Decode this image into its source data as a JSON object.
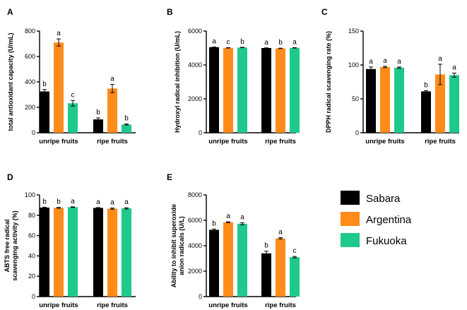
{
  "colors": {
    "Sabara": "#000000",
    "Argentina": "#ff8c1a",
    "Fukuoka": "#1fc98a"
  },
  "legend": {
    "entries": [
      "Sabara",
      "Argentina",
      "Fukuoka"
    ]
  },
  "chart_data": [
    {
      "panel": "A",
      "type": "bar",
      "categories": [
        "unripe fruits",
        "ripe fruits"
      ],
      "ylabel": "total antioxidant capacity (U/mL)",
      "ylim": [
        0,
        800
      ],
      "yticks": [
        0,
        200,
        400,
        600,
        800
      ],
      "series": [
        {
          "name": "Sabara",
          "values": [
            325,
            105
          ],
          "errors": [
            15,
            12
          ],
          "labels": [
            "b",
            "b"
          ]
        },
        {
          "name": "Argentina",
          "values": [
            710,
            348
          ],
          "errors": [
            28,
            32
          ],
          "labels": [
            "a",
            "a"
          ]
        },
        {
          "name": "Fukuoka",
          "values": [
            232,
            65
          ],
          "errors": [
            22,
            4
          ],
          "labels": [
            "c",
            "b"
          ]
        }
      ]
    },
    {
      "panel": "B",
      "type": "bar",
      "categories": [
        "unripe fruits",
        "ripe fruits"
      ],
      "ylabel": "Hydroxyl radical inhibition (U/mL)",
      "ylim": [
        0,
        6000
      ],
      "yticks": [
        0,
        2000,
        4000,
        6000
      ],
      "series": [
        {
          "name": "Sabara",
          "values": [
            5050,
            5000
          ],
          "errors": [
            10,
            10
          ],
          "labels": [
            "a",
            "a"
          ]
        },
        {
          "name": "Argentina",
          "values": [
            5010,
            4980
          ],
          "errors": [
            10,
            10
          ],
          "labels": [
            "c",
            "b"
          ]
        },
        {
          "name": "Fukuoka",
          "values": [
            5030,
            5010
          ],
          "errors": [
            10,
            10
          ],
          "labels": [
            "b",
            "a"
          ]
        }
      ]
    },
    {
      "panel": "C",
      "type": "bar",
      "categories": [
        "unripe fruits",
        "ripe fruits"
      ],
      "ylabel": "DPPH radical scavenging rate (%)",
      "ylim": [
        0,
        150
      ],
      "yticks": [
        0,
        50,
        100,
        150
      ],
      "series": [
        {
          "name": "Sabara",
          "values": [
            94,
            61
          ],
          "errors": [
            3,
            1
          ],
          "labels": [
            "a",
            "b"
          ]
        },
        {
          "name": "Argentina",
          "values": [
            97,
            86
          ],
          "errors": [
            1,
            15
          ],
          "labels": [
            "a",
            "a"
          ]
        },
        {
          "name": "Fukuoka",
          "values": [
            96,
            85
          ],
          "errors": [
            1,
            3
          ],
          "labels": [
            "a",
            "a"
          ]
        }
      ]
    },
    {
      "panel": "D",
      "type": "bar",
      "categories": [
        "unripe fruits",
        "ripe fruits"
      ],
      "ylabel": "ABTS free radical scavenging activity (%)",
      "ylabel_lines": [
        "ABTS free radical",
        "scavenging activity (%)"
      ],
      "ylim": [
        0,
        100
      ],
      "yticks": [
        0,
        20,
        40,
        60,
        80,
        100
      ],
      "series": [
        {
          "name": "Sabara",
          "values": [
            87.5,
            87.2
          ],
          "errors": [
            0.4,
            0.4
          ],
          "labels": [
            "b",
            "a"
          ]
        },
        {
          "name": "Argentina",
          "values": [
            87.3,
            86.5
          ],
          "errors": [
            0.4,
            0.6
          ],
          "labels": [
            "b",
            "a"
          ]
        },
        {
          "name": "Fukuoka",
          "values": [
            88.0,
            86.8
          ],
          "errors": [
            0.3,
            0.6
          ],
          "labels": [
            "a",
            "a"
          ]
        }
      ]
    },
    {
      "panel": "E",
      "type": "bar",
      "categories": [
        "unripe fruits",
        "ripe fruits"
      ],
      "ylabel": "Ability to inhibit superoxide anion radicals (U/L)",
      "ylabel_lines": [
        "Ability to inhibit superoxide",
        "anion radicals (U/L)"
      ],
      "ylim": [
        0,
        8000
      ],
      "yticks": [
        0,
        2000,
        4000,
        6000,
        8000
      ],
      "series": [
        {
          "name": "Sabara",
          "values": [
            5250,
            3400
          ],
          "errors": [
            60,
            170
          ],
          "labels": [
            "b",
            "b"
          ]
        },
        {
          "name": "Argentina",
          "values": [
            5850,
            4580
          ],
          "errors": [
            40,
            60
          ],
          "labels": [
            "a",
            "a"
          ]
        },
        {
          "name": "Fukuoka",
          "values": [
            5730,
            3100
          ],
          "errors": [
            80,
            60
          ],
          "labels": [
            "a",
            "c"
          ]
        }
      ]
    }
  ]
}
